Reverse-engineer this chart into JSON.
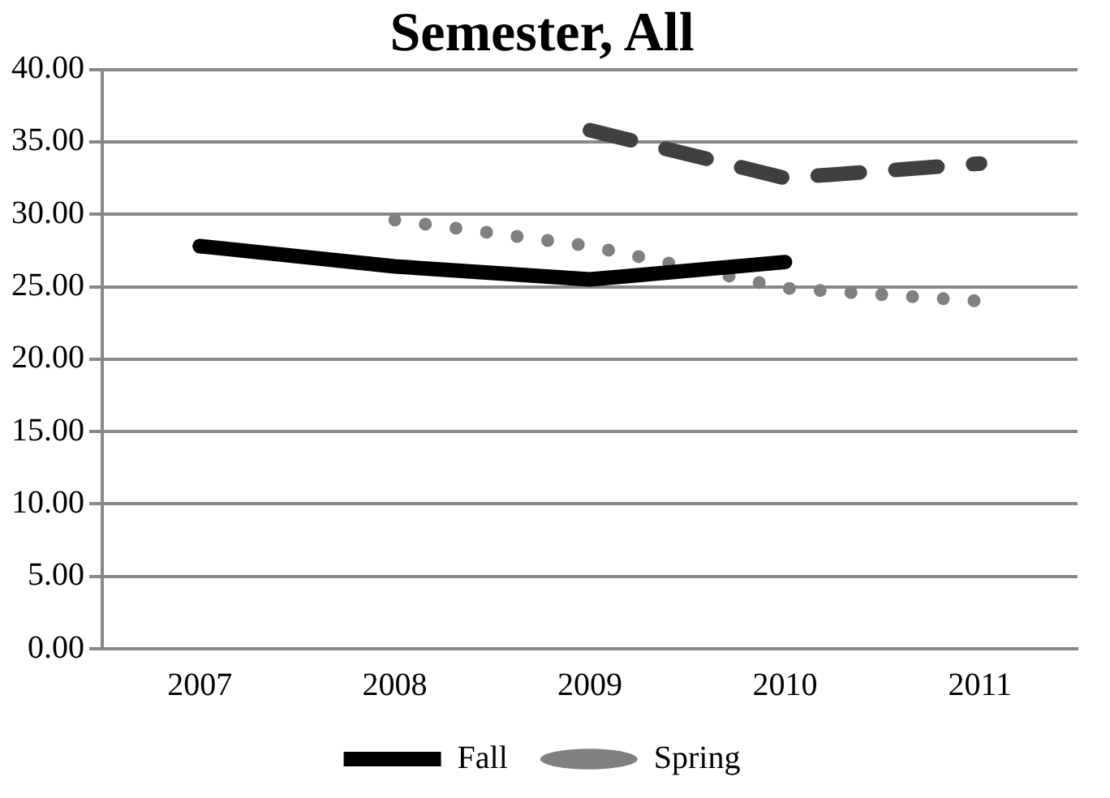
{
  "chart_data": {
    "type": "line",
    "title": "Semester, All",
    "categories": [
      "2007",
      "2008",
      "2009",
      "2010",
      "2011"
    ],
    "series": [
      {
        "name": "Fall",
        "color": "#000000",
        "line_style": "solid",
        "values": [
          27.8,
          26.4,
          25.5,
          26.7,
          null
        ]
      },
      {
        "name": "Spring",
        "color": "#808080",
        "line_style": "dotted",
        "values": [
          null,
          29.6,
          27.8,
          24.9,
          24.0
        ]
      },
      {
        "color": "#404040",
        "line_style": "dashed",
        "values": [
          null,
          null,
          35.8,
          32.5,
          33.5
        ]
      }
    ],
    "ylim": [
      0,
      40
    ],
    "yticks": [
      {
        "value": 0,
        "label": "0.00"
      },
      {
        "value": 5,
        "label": "5.00"
      },
      {
        "value": 10,
        "label": "10.00"
      },
      {
        "value": 15,
        "label": "15.00"
      },
      {
        "value": 20,
        "label": "20.00"
      },
      {
        "value": 25,
        "label": "25.00"
      },
      {
        "value": 30,
        "label": "30.00"
      },
      {
        "value": 35,
        "label": "35.00"
      },
      {
        "value": 40,
        "label": "40.00"
      }
    ],
    "grid": "y",
    "legend": "bottom",
    "marker": "none"
  }
}
